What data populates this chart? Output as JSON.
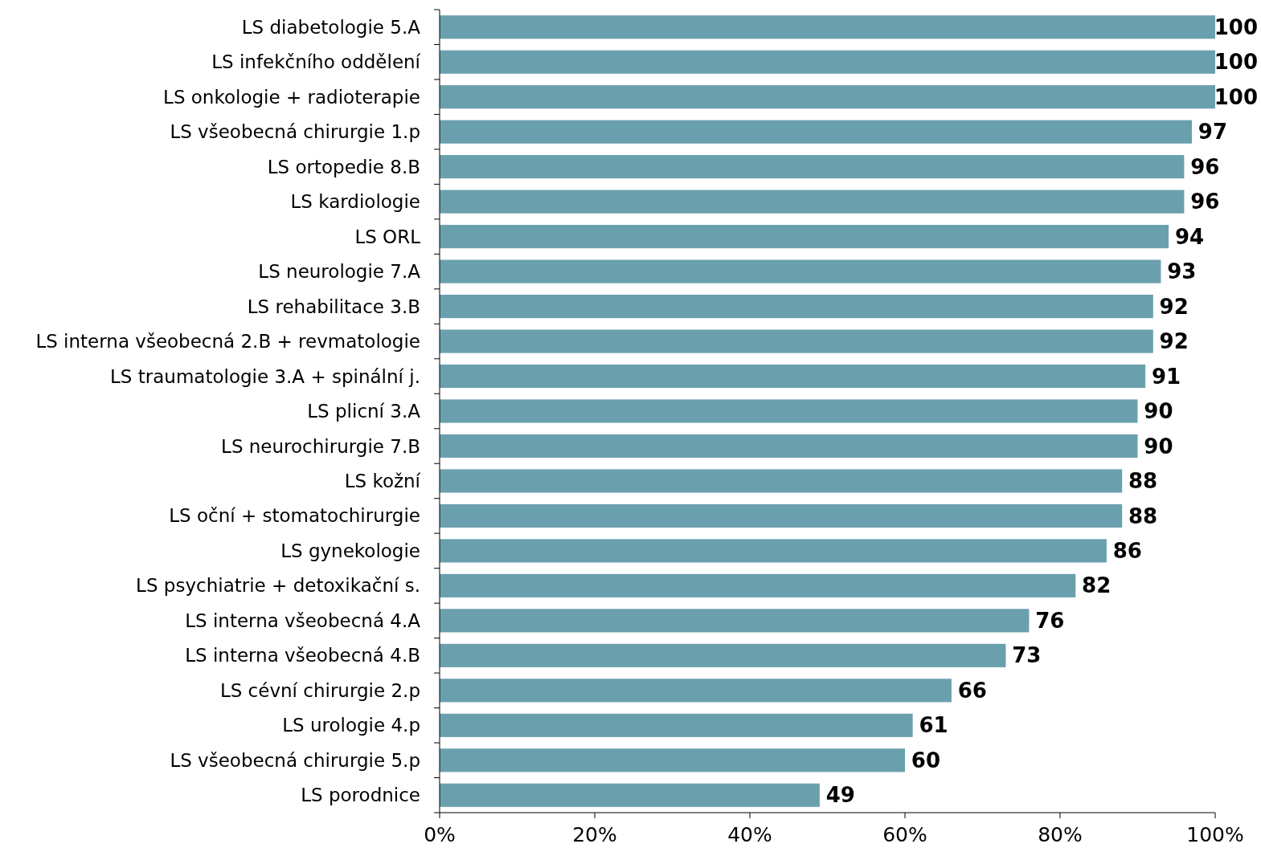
{
  "chart_data": {
    "type": "bar",
    "orientation": "horizontal",
    "data_labels": true,
    "color": "#6aa0ae",
    "categories": [
      "LS diabetologie 5.A",
      "LS infekčního oddělení",
      "LS onkologie + radioterapie",
      "LS všeobecná chirurgie 1.p",
      "LS ortopedie 8.B",
      "LS kardiologie",
      "LS ORL",
      "LS neurologie 7.A",
      "LS rehabilitace 3.B",
      "LS interna všeobecná 2.B + revmatologie",
      "LS traumatologie 3.A + spinální j.",
      "LS plicní 3.A",
      "LS neurochirurgie 7.B",
      "LS kožní",
      "LS oční + stomatochirurgie",
      "LS gynekologie",
      "LS psychiatrie + detoxikační s.",
      "LS interna všeobecná 4.A",
      "LS interna všeobecná 4.B",
      "LS cévní chirurgie 2.p",
      "LS urologie 4.p",
      "LS všeobecná chirurgie 5.p",
      "LS porodnice"
    ],
    "values": [
      100,
      100,
      100,
      97,
      96,
      96,
      94,
      93,
      92,
      92,
      91,
      90,
      90,
      88,
      88,
      86,
      82,
      76,
      73,
      66,
      61,
      60,
      49
    ],
    "xlim": [
      0,
      100
    ],
    "xticks": [
      {
        "value": 0,
        "label": "0%"
      },
      {
        "value": 20,
        "label": "20%"
      },
      {
        "value": 40,
        "label": "40%"
      },
      {
        "value": 60,
        "label": "60%"
      },
      {
        "value": 80,
        "label": "80%"
      },
      {
        "value": 100,
        "label": "100%"
      }
    ]
  }
}
